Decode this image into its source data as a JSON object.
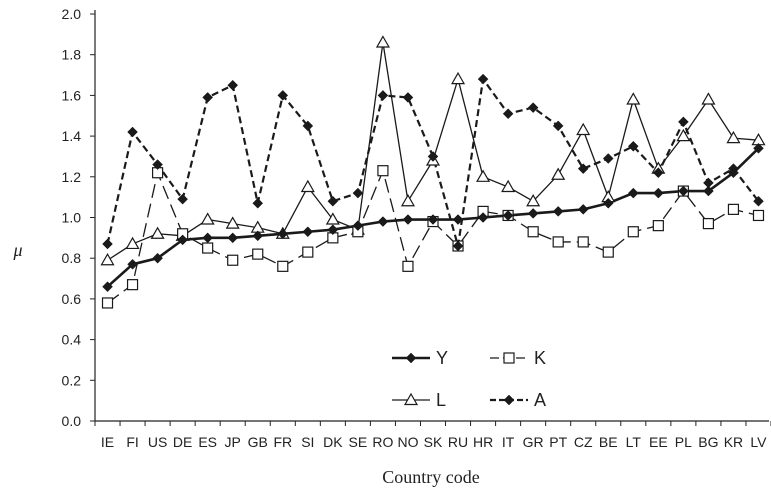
{
  "chart_data": {
    "type": "line",
    "title": "",
    "xlabel": "Country code",
    "ylabel": "μ",
    "ylim": [
      0.0,
      2.0
    ],
    "yticks": [
      "0.0",
      "0.2",
      "0.4",
      "0.6",
      "0.8",
      "1.0",
      "1.2",
      "1.4",
      "1.6",
      "1.8",
      "2.0"
    ],
    "grid": false,
    "legend_position": "bottom-center",
    "categories": [
      "IE",
      "FI",
      "US",
      "DE",
      "ES",
      "JP",
      "GB",
      "FR",
      "SI",
      "DK",
      "SE",
      "RO",
      "NO",
      "SK",
      "RU",
      "HR",
      "IT",
      "GR",
      "PT",
      "CZ",
      "BE",
      "LT",
      "EE",
      "PL",
      "BG",
      "KR",
      "LV"
    ],
    "series": [
      {
        "name": "Y",
        "marker": "filled-diamond",
        "line": "solid-thick",
        "values": [
          0.66,
          0.77,
          0.8,
          0.89,
          0.9,
          0.9,
          0.91,
          0.92,
          0.93,
          0.94,
          0.96,
          0.98,
          0.99,
          0.99,
          0.99,
          1.0,
          1.01,
          1.02,
          1.03,
          1.04,
          1.07,
          1.12,
          1.12,
          1.13,
          1.13,
          1.22,
          1.34
        ]
      },
      {
        "name": "K",
        "marker": "open-square",
        "line": "long-dash",
        "values": [
          0.58,
          0.67,
          1.22,
          0.92,
          0.85,
          0.79,
          0.82,
          0.76,
          0.83,
          0.9,
          0.93,
          1.23,
          0.76,
          0.98,
          0.86,
          1.03,
          1.01,
          0.93,
          0.88,
          0.88,
          0.83,
          0.93,
          0.96,
          1.13,
          0.97,
          1.04,
          1.01
        ]
      },
      {
        "name": "L",
        "marker": "open-triangle",
        "line": "solid-thin",
        "values": [
          0.79,
          0.87,
          0.92,
          0.91,
          0.99,
          0.97,
          0.95,
          0.92,
          1.15,
          0.99,
          0.94,
          1.86,
          1.08,
          1.28,
          1.68,
          1.2,
          1.15,
          1.08,
          1.21,
          1.43,
          1.1,
          1.58,
          1.24,
          1.4,
          1.58,
          1.39,
          1.38
        ]
      },
      {
        "name": "A",
        "marker": "filled-diamond",
        "line": "short-dash",
        "values": [
          0.87,
          1.42,
          1.26,
          1.09,
          1.59,
          1.65,
          1.07,
          1.6,
          1.45,
          1.08,
          1.12,
          1.6,
          1.59,
          1.3,
          0.86,
          1.68,
          1.51,
          1.54,
          1.45,
          1.24,
          1.29,
          1.35,
          1.22,
          1.47,
          1.17,
          1.24,
          1.08
        ]
      }
    ],
    "colors": {
      "ink": "#1a1a1a",
      "axis": "#222222"
    }
  }
}
